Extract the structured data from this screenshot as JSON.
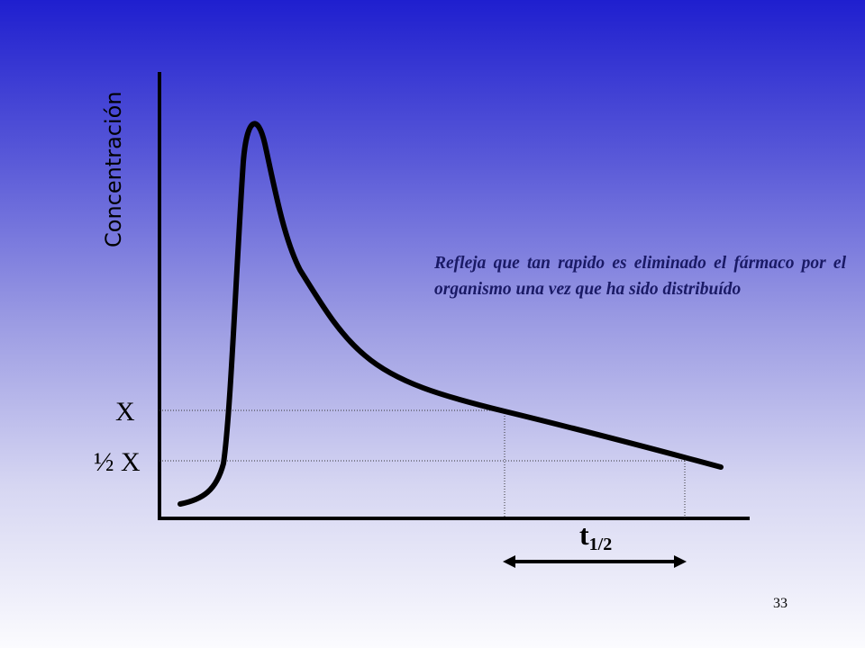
{
  "y_axis_label": "Concentración",
  "level_x_label": "X",
  "level_half_x_label": "½ X",
  "annotation": "Refleja que tan rapido es eliminado el fármaco por el organismo una vez que ha sido distribuído",
  "half_life": {
    "symbol": "t",
    "subscript": "1/2"
  },
  "page_number": "33",
  "colors": {
    "curve": "#000000",
    "guides": "#333333",
    "annotation_text": "#1a1a66"
  }
}
